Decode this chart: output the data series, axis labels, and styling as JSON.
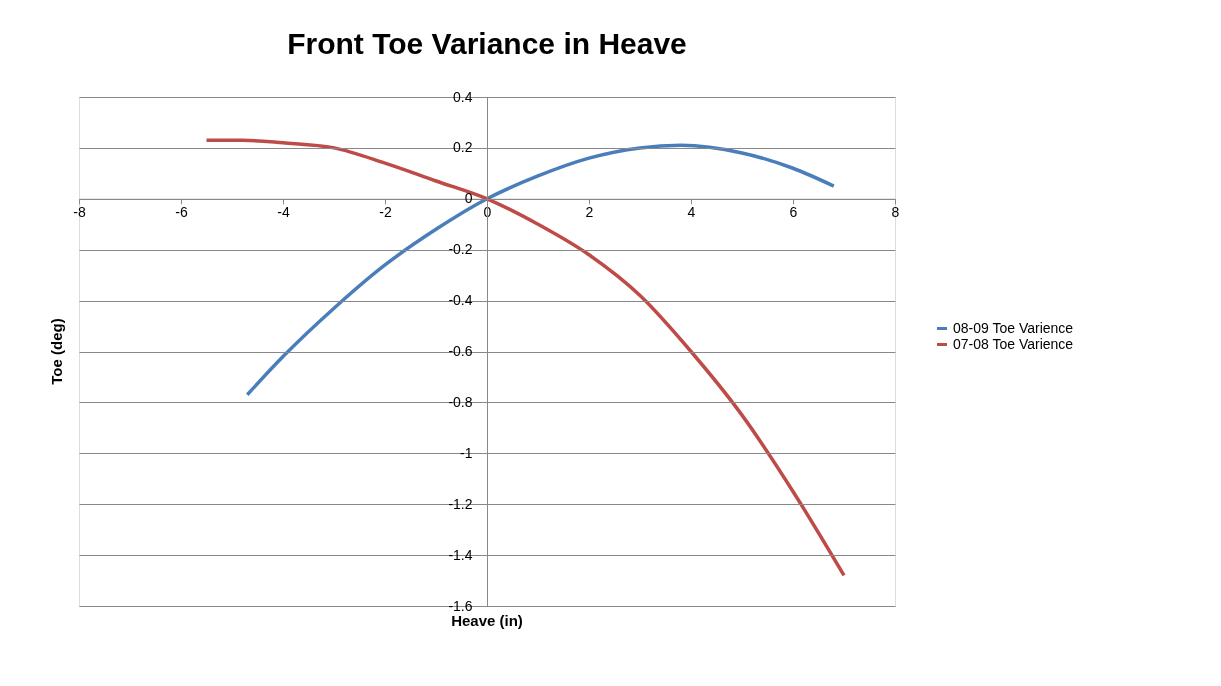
{
  "chart_data": {
    "type": "line",
    "title": "Front  Toe Variance in Heave",
    "xlabel": "Heave (in)",
    "ylabel": "Toe (deg)",
    "xlim": [
      -8,
      8
    ],
    "xticks": [
      -8,
      -6,
      -4,
      -2,
      0,
      2,
      4,
      6,
      8
    ],
    "ylim": [
      -1.6,
      0.4
    ],
    "yticks": [
      -1.6,
      -1.4,
      -1.2,
      -1,
      -0.8,
      -0.6,
      -0.4,
      -0.2,
      0,
      0.2,
      0.4
    ],
    "grid": "y",
    "legend": "right",
    "marker": "none",
    "line_style": "solid",
    "series": [
      {
        "name": "08-09 Toe Varience",
        "color": "#4a7ebb",
        "x": [
          -4.7,
          -4,
          -3,
          -2,
          -1,
          0,
          1,
          2,
          3,
          3.8,
          5,
          6,
          6.8
        ],
        "values": [
          -0.77,
          -0.62,
          -0.43,
          -0.26,
          -0.12,
          0,
          0.09,
          0.16,
          0.2,
          0.21,
          0.18,
          0.12,
          0.05
        ]
      },
      {
        "name": "07-08 Toe Varience",
        "color": "#be4b48",
        "x": [
          -5.5,
          -4.8,
          -4,
          -3,
          -2,
          -1,
          0,
          1,
          2,
          3,
          4,
          5,
          6,
          7
        ],
        "values": [
          0.23,
          0.23,
          0.22,
          0.2,
          0.14,
          0.07,
          0,
          -0.1,
          -0.22,
          -0.38,
          -0.6,
          -0.85,
          -1.15,
          -1.48
        ]
      }
    ]
  }
}
